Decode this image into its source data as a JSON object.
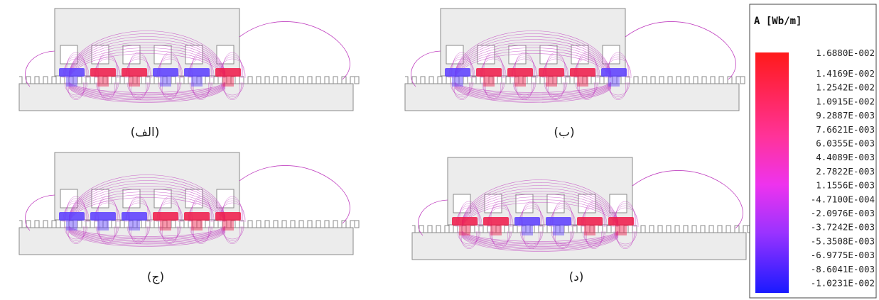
{
  "panels": [
    {
      "id": "alef",
      "caption": "(الف)",
      "coils": [
        "blue",
        "red",
        "red",
        "blue",
        "blue",
        "red"
      ]
    },
    {
      "id": "be",
      "caption": "(ب)",
      "coils": [
        "blue",
        "red",
        "red",
        "red",
        "red",
        "blue"
      ]
    },
    {
      "id": "jim",
      "caption": "(ج)",
      "coils": [
        "blue",
        "blue",
        "blue",
        "red",
        "red",
        "red"
      ]
    },
    {
      "id": "dal",
      "caption": "(د)",
      "coils": [
        "red",
        "red",
        "blue",
        "blue",
        "red",
        "red"
      ]
    }
  ],
  "legend": {
    "title": "A [Wb/m]",
    "max_label": "1.6880E-002",
    "values": [
      "1.4169E-002",
      "1.2542E-002",
      "1.0915E-002",
      "9.2887E-003",
      "7.6621E-003",
      "6.0355E-003",
      "4.4089E-003",
      "2.7822E-003",
      "1.1556E-003",
      "-4.7100E-004",
      "-2.0976E-003",
      "-3.7242E-003",
      "-5.3508E-003",
      "-6.9775E-003",
      "-8.6041E-003",
      "-1.0231E-002"
    ],
    "colors": {
      "max": "#ff1a1a",
      "mid": "#ff33cc",
      "low": "#9a33ff",
      "min": "#1a1aff"
    }
  },
  "colors": {
    "field_line": "#c040c0",
    "outline": "#8a8a8a",
    "body_fill": "#ececec"
  }
}
